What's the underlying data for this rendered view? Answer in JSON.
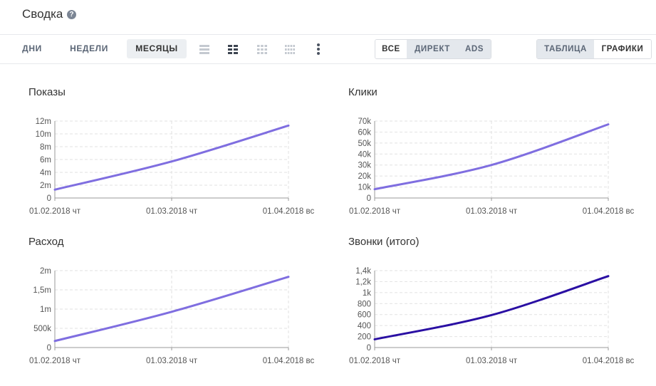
{
  "header": {
    "title": "Сводка",
    "help": "?"
  },
  "periods": [
    "ДНИ",
    "НЕДЕЛИ",
    "МЕСЯЦЫ"
  ],
  "source_filter": [
    "ВСЕ",
    "ДИРЕКТ",
    "ADS"
  ],
  "view_toggle": [
    "ТАБЛИЦА",
    "ГРАФИКИ"
  ],
  "colors": {
    "line": "#7f6ee0",
    "line_dark": "#2a0fa3",
    "grid": "#e2e2e2",
    "axis": "#9a9a9a"
  },
  "chart_data": [
    {
      "type": "line",
      "title": "Показы",
      "x": [
        "01.02.2018 чт",
        "01.03.2018 чт",
        "01.04.2018 вс"
      ],
      "series": [
        {
          "values": [
            1300000,
            5700000,
            11300000
          ]
        }
      ],
      "ylim": [
        0,
        12000000
      ],
      "yticks": [
        0,
        2000000,
        4000000,
        6000000,
        8000000,
        10000000,
        12000000
      ],
      "ytick_labels": [
        "0",
        "2m",
        "4m",
        "6m",
        "8m",
        "10m",
        "12m"
      ],
      "grid": true
    },
    {
      "type": "line",
      "title": "Клики",
      "x": [
        "01.02.2018 чт",
        "01.03.2018 чт",
        "01.04.2018 вс"
      ],
      "series": [
        {
          "values": [
            8000,
            30000,
            67000
          ]
        }
      ],
      "ylim": [
        0,
        70000
      ],
      "yticks": [
        0,
        10000,
        20000,
        30000,
        40000,
        50000,
        60000,
        70000
      ],
      "ytick_labels": [
        "0",
        "10k",
        "20k",
        "30k",
        "40k",
        "50k",
        "60k",
        "70k"
      ],
      "grid": true
    },
    {
      "type": "line",
      "title": "Расход",
      "x": [
        "01.02.2018 чт",
        "01.03.2018 чт",
        "01.04.2018 вс"
      ],
      "series": [
        {
          "values": [
            170000,
            930000,
            1840000
          ]
        }
      ],
      "ylim": [
        0,
        2000000
      ],
      "yticks": [
        0,
        500000,
        1000000,
        1500000,
        2000000
      ],
      "ytick_labels": [
        "0",
        "500k",
        "1m",
        "1,5m",
        "2m"
      ],
      "grid": true
    },
    {
      "type": "line",
      "title": "Звонки (итого)",
      "x": [
        "01.02.2018 чт",
        "01.03.2018 чт",
        "01.04.2018 вс"
      ],
      "series": [
        {
          "values": [
            150,
            590,
            1300
          ]
        }
      ],
      "ylim": [
        0,
        1400
      ],
      "yticks": [
        0,
        200,
        400,
        600,
        800,
        1000,
        1200,
        1400
      ],
      "ytick_labels": [
        "0",
        "200",
        "400",
        "600",
        "800",
        "1k",
        "1,2k",
        "1,4k"
      ],
      "grid": true,
      "dark": true
    }
  ]
}
